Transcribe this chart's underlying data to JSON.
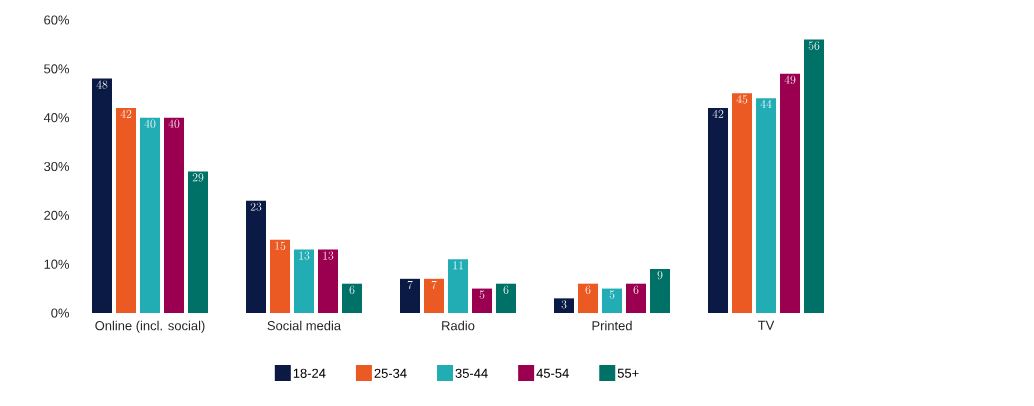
{
  "chart_data": {
    "type": "bar",
    "categories": [
      "Online (incl. social)",
      "Social media",
      "Radio",
      "Printed",
      "TV"
    ],
    "series": [
      {
        "name": "18-24",
        "color": "#0b1a45",
        "values": [
          48,
          23,
          7,
          3,
          42
        ]
      },
      {
        "name": "25-34",
        "color": "#ec5a24",
        "values": [
          42,
          15,
          7,
          6,
          45
        ]
      },
      {
        "name": "35-44",
        "color": "#22adb5",
        "values": [
          40,
          13,
          11,
          5,
          44
        ]
      },
      {
        "name": "45-54",
        "color": "#9b0050",
        "values": [
          40,
          13,
          5,
          6,
          49
        ]
      },
      {
        "name": "55+",
        "color": "#007166",
        "values": [
          29,
          6,
          6,
          9,
          56
        ]
      }
    ],
    "ylim": [
      0,
      60
    ],
    "yticks": [
      {
        "value": 0,
        "label": "0%"
      },
      {
        "value": 10,
        "label": "10%"
      },
      {
        "value": 20,
        "label": "20%"
      },
      {
        "value": 30,
        "label": "30%"
      },
      {
        "value": 40,
        "label": "40%"
      },
      {
        "value": 50,
        "label": "50%"
      },
      {
        "value": 60,
        "label": "60%"
      }
    ],
    "data_labels": true,
    "legend": "bottom",
    "grid": false
  }
}
